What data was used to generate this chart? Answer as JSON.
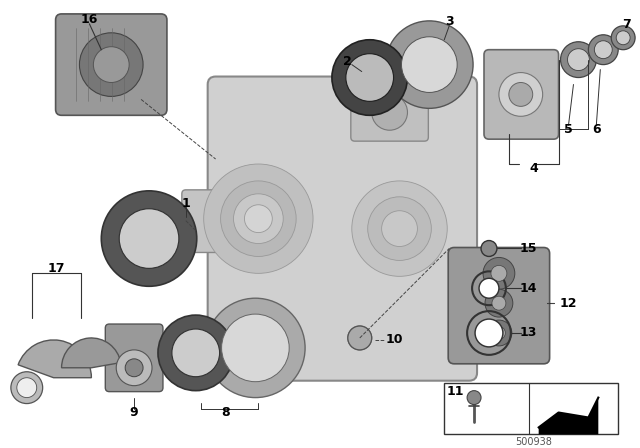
{
  "background_color": "#ffffff",
  "figsize": [
    6.4,
    4.48
  ],
  "dpi": 100,
  "diagram_id": "500938",
  "gray_main": "#c8c8c8",
  "gray_dark": "#888888",
  "gray_mid": "#aaaaaa",
  "gray_light": "#dddddd",
  "black": "#111111",
  "stroke": "#555555"
}
